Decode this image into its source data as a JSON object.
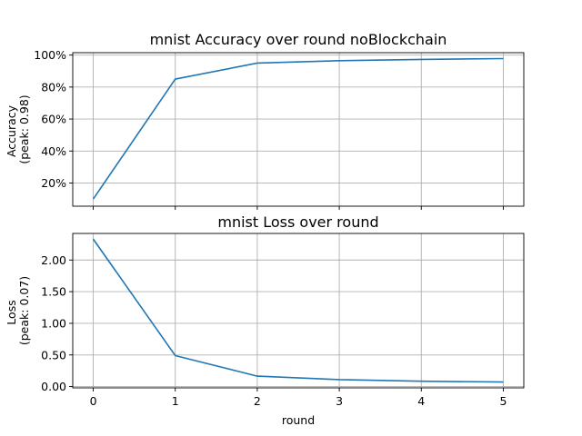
{
  "chart_data": [
    {
      "type": "line",
      "title": "mnist Accuracy over round  noBlockchain",
      "ylabel_lines": [
        "Accuracy",
        "(peak: 0.98)"
      ],
      "xlabel": "",
      "x": [
        0,
        1,
        2,
        3,
        4,
        5
      ],
      "series": [
        {
          "values": [
            0.1,
            0.85,
            0.95,
            0.965,
            0.973,
            0.978
          ]
        }
      ],
      "xlim": [
        -0.25,
        5.25
      ],
      "ylim": [
        0.055,
        1.015
      ],
      "yticks": [
        0.2,
        0.4,
        0.6,
        0.8,
        1.0
      ],
      "ytick_labels": [
        "20%",
        "40%",
        "60%",
        "80%",
        "100%"
      ],
      "xticks": [
        0,
        1,
        2,
        3,
        4,
        5
      ],
      "show_xtick_labels": false,
      "grid": true,
      "color": "#1f77b4"
    },
    {
      "type": "line",
      "title": "mnist Loss over round",
      "ylabel_lines": [
        "Loss",
        "(peak: 0.07)"
      ],
      "xlabel": "round",
      "x": [
        0,
        1,
        2,
        3,
        4,
        5
      ],
      "series": [
        {
          "values": [
            2.33,
            0.49,
            0.165,
            0.11,
            0.085,
            0.072
          ]
        }
      ],
      "xlim": [
        -0.25,
        5.25
      ],
      "ylim": [
        -0.02,
        2.42
      ],
      "yticks": [
        0.0,
        0.5,
        1.0,
        1.5,
        2.0
      ],
      "ytick_labels": [
        "0.00",
        "0.50",
        "1.00",
        "1.50",
        "2.00"
      ],
      "xticks": [
        0,
        1,
        2,
        3,
        4,
        5
      ],
      "xtick_labels": [
        "0",
        "1",
        "2",
        "3",
        "4",
        "5"
      ],
      "show_xtick_labels": true,
      "grid": true,
      "color": "#1f77b4"
    }
  ]
}
